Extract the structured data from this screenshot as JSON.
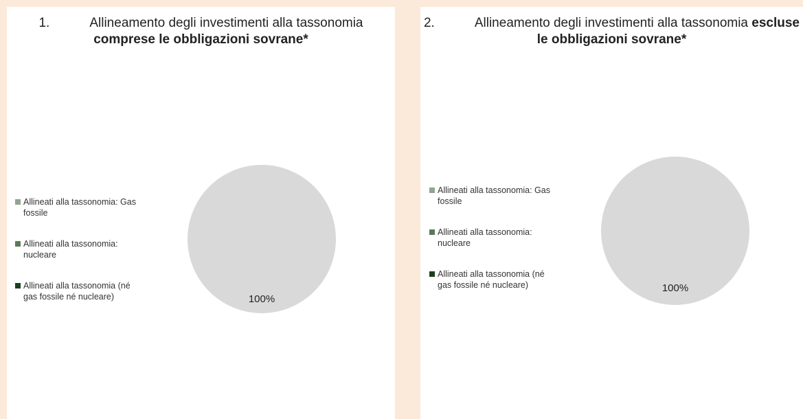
{
  "chart_data": [
    {
      "type": "pie",
      "title_number": "1.",
      "title": "Allineamento degli investimenti alla tassonomia",
      "title_bold": "comprese le obbligazioni sovrane*",
      "categories": [
        "Allineati alla tassonomia: Gas fossile",
        "Allineati alla tassonomia: nucleare",
        "Allineati alla tassonomia (né gas fossile né nucleare)",
        null
      ],
      "values": [
        0,
        0,
        0,
        100
      ],
      "value_labels": [
        null,
        null,
        null,
        "100%"
      ],
      "colors": [
        "#8fa58f",
        "#5b7a5b",
        "#1e3f1e",
        "#d9d9d9"
      ],
      "legend": "left"
    },
    {
      "type": "pie",
      "title_number": "2.",
      "title": "Allineamento degli investimenti alla tassonomia",
      "title_bold": "escluse le obbligazioni sovrane*",
      "categories": [
        "Allineati alla tassonomia: Gas fossile",
        "Allineati alla tassonomia: nucleare",
        "Allineati alla tassonomia (né gas fossile né nucleare)",
        null
      ],
      "values": [
        0,
        0,
        0,
        100
      ],
      "value_labels": [
        null,
        null,
        null,
        "100%"
      ],
      "colors": [
        "#8fa58f",
        "#5b7a5b",
        "#1e3f1e",
        "#d9d9d9"
      ],
      "legend": "left"
    }
  ]
}
